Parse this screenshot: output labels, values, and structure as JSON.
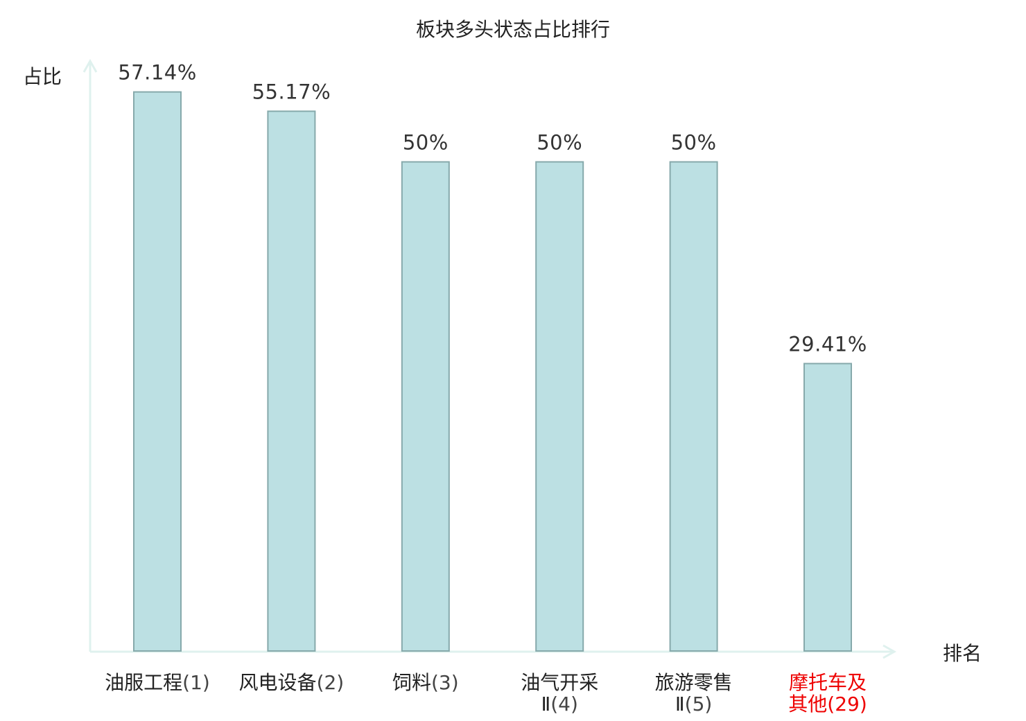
{
  "chart_data": {
    "type": "bar",
    "title": "板块多头状态占比排行",
    "ylabel": "占比",
    "xlabel": "排名",
    "categories": [
      {
        "name_lines": [
          "油服工程"
        ],
        "rank": "(1)",
        "highlight": false
      },
      {
        "name_lines": [
          "风电设备"
        ],
        "rank": "(2)",
        "highlight": false
      },
      {
        "name_lines": [
          "饲料"
        ],
        "rank": "(3)",
        "highlight": false
      },
      {
        "name_lines": [
          "油气开采",
          "Ⅱ"
        ],
        "rank": "(4)",
        "highlight": false
      },
      {
        "name_lines": [
          "旅游零售",
          "Ⅱ"
        ],
        "rank": "(5)",
        "highlight": false
      },
      {
        "name_lines": [
          "摩托车及",
          "其他"
        ],
        "rank": "(29)",
        "highlight": true
      }
    ],
    "values": [
      57.14,
      55.17,
      50,
      50,
      50,
      29.41
    ],
    "value_labels": [
      "57.14%",
      "55.17%",
      "50%",
      "50%",
      "50%",
      "29.41%"
    ],
    "ylim": [
      0,
      60
    ],
    "grid": false,
    "legend": "none",
    "colors": {
      "bar_fill": "#bce0e3",
      "bar_stroke": "#86a9ab",
      "axis": "#dff1ee",
      "text": "#222222",
      "rank_text": "#444444",
      "highlight": "#ee0000"
    }
  }
}
